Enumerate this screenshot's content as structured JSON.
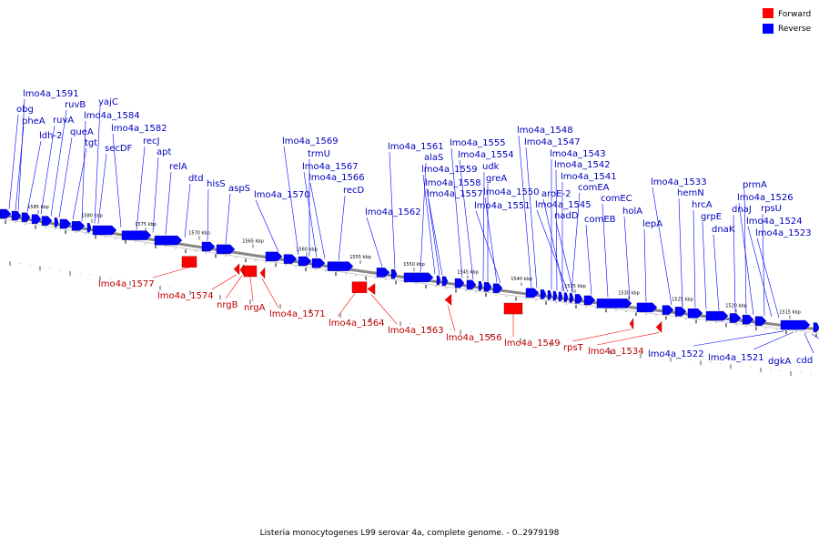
{
  "legend": [
    {
      "label": "Forward",
      "color": "#ff0000"
    },
    {
      "label": "Reverse",
      "color": "#0000ff"
    }
  ],
  "caption": "Listeria monocytogenes L99 serovar 4a, complete genome. - 0..2979198",
  "colors": {
    "forward": "#ff0000",
    "reverse": "#0000ff",
    "forward_label": "#bb0000",
    "reverse_label": "#0000bb",
    "backbone": "#777777"
  },
  "kbp_ticks": [
    "1585 kbp",
    "1580 kbp",
    "1575 kbp",
    "1570 kbp",
    "1565 kbp",
    "1560 kbp",
    "1555 kbp",
    "1550 kbp",
    "1545 kbp",
    "1540 kbp",
    "1535 kbp",
    "1530 kbp",
    "1525 kbp",
    "1520 kbp",
    "1515 kbp"
  ],
  "reverse_labels": [
    "lmo4a_1591",
    "obg",
    "pheA",
    "ldh-2",
    "ruvB",
    "ruvA",
    "queA",
    "tgt",
    "yajC",
    "lmo4a_1584",
    "secDF",
    "lmo4a_1582",
    "recJ",
    "apt",
    "relA",
    "dtd",
    "hisS",
    "aspS",
    "lmo4a_1570",
    "lmo4a_1569",
    "trmU",
    "lmo4a_1567",
    "lmo4a_1566",
    "recD",
    "lmo4a_1562",
    "lmo4a_1561",
    "alaS",
    "lmo4a_1559",
    "lmo4a_1558",
    "lmo4a_1557",
    "lmo4a_1555",
    "lmo4a_1554",
    "udk",
    "greA",
    "lmo4a_1550",
    "lmo4a_1551",
    "lmo4a_1548",
    "lmo4a_1547",
    "lmo4a_1543",
    "lmo4a_1542",
    "lmo4a_1541",
    "comEA",
    "aroE-2",
    "lmo4a_1545",
    "nadD",
    "comEB",
    "comEC",
    "holA",
    "lepA",
    "lmo4a_1533",
    "hemN",
    "hrcA",
    "grpE",
    "dnaK",
    "dnaJ",
    "prmA",
    "lmo4a_1526",
    "rpsU",
    "lmo4a_1524",
    "lmo4a_1523",
    "lmo4a_1522",
    "lmo4a_1521",
    "dgkA",
    "cdd"
  ],
  "forward_labels": [
    "lmo4a_1577",
    "lmo4a_1574",
    "nrgB",
    "nrgA",
    "lmo4a_1571",
    "lmo4a_1564",
    "lmo4a_1563",
    "lmo4a_1556",
    "lmo4a_1549",
    "rpsT",
    "lmo4a_1534"
  ]
}
